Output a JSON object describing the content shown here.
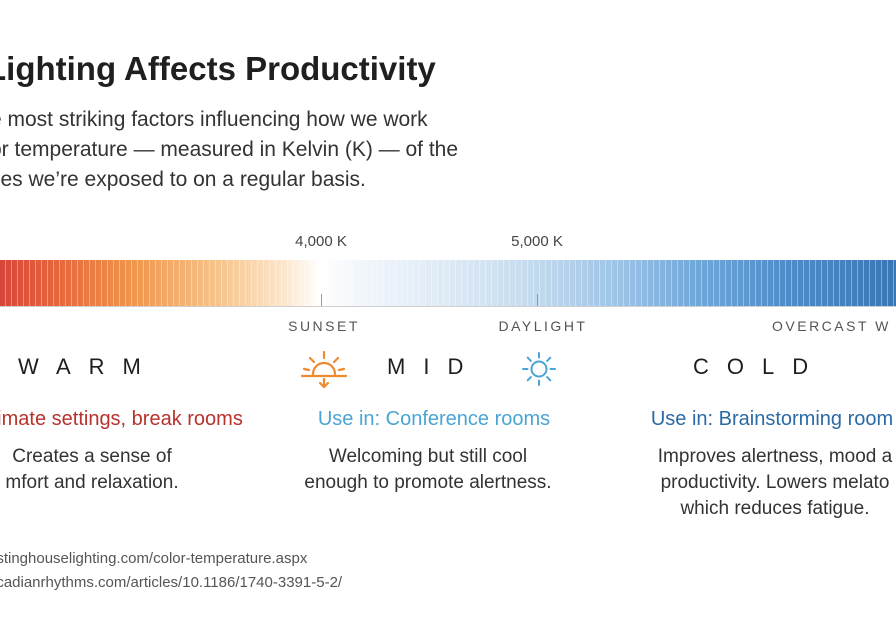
{
  "header": {
    "title": "Lighting Affects Productivity",
    "intro_lines": [
      "e most striking factors influencing how we work",
      "or temperature — measured in Kelvin (K) — of the",
      "ces we’re exposed to on a regular basis."
    ]
  },
  "scale": {
    "top_ticks": [
      "4,000 K",
      "5,000 K"
    ],
    "bottom_labels": [
      "SUNSET",
      "DAYLIGHT",
      "OVERCAST W"
    ],
    "colors": {
      "warm": "#d8463a",
      "mid": "#ffffff",
      "cold": "#3976b5"
    }
  },
  "columns": [
    {
      "category": "WARM",
      "icon": "sunset-icon",
      "use_in": "imate settings, break rooms",
      "use_in_color": "#b8322c",
      "desc_lines": [
        "Creates a sense of",
        "mfort and relaxation."
      ]
    },
    {
      "category": "MID",
      "icon": "sun-icon",
      "use_in": "Use in: Conference rooms",
      "use_in_color": "#4aa5d3",
      "desc_lines": [
        "Welcoming but still cool",
        "enough to promote alertness."
      ]
    },
    {
      "category": "COLD",
      "icon": "",
      "use_in": "Use in: Brainstorming room",
      "use_in_color": "#2b6aa6",
      "desc_lines": [
        "Improves alertness, mood a",
        "productivity. Lowers melato",
        "which reduces fatigue."
      ]
    }
  ],
  "sources": [
    "estinghouselighting.com/color-temperature.aspx",
    "ircadianrhythms.com/articles/10.1186/1740-3391-5-2/"
  ]
}
